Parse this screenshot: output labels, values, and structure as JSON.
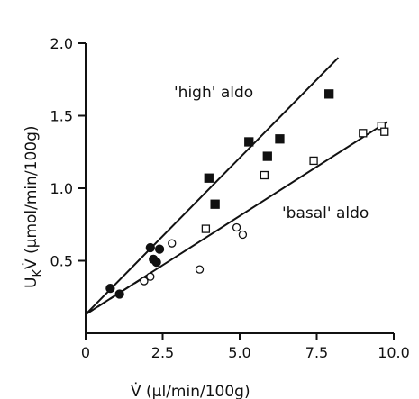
{
  "chart_data": {
    "type": "scatter",
    "xlabel": "V̇ (µl/min/100g)",
    "ylabel_main": "U",
    "ylabel_sub": "K",
    "ylabel_rest": "V̇ (µmol/min/100g)",
    "xlim": [
      0,
      10.0
    ],
    "ylim": [
      0,
      2.0
    ],
    "x_ticks": [
      0,
      2.5,
      5.0,
      7.5,
      10.0
    ],
    "x_tick_labels": [
      "0",
      "2.5",
      "5.0",
      "7.5",
      "10.0"
    ],
    "y_ticks": [
      0.5,
      1.0,
      1.5,
      2.0
    ],
    "y_tick_labels": [
      "0.5",
      "1.0",
      "1.5",
      "2.0"
    ],
    "grid": false,
    "series": [
      {
        "name": "'high' aldo",
        "marker": "filled",
        "points": [
          {
            "shape": "circle",
            "x": 0.8,
            "y": 0.31
          },
          {
            "shape": "circle",
            "x": 1.1,
            "y": 0.27
          },
          {
            "shape": "circle",
            "x": 2.1,
            "y": 0.59
          },
          {
            "shape": "circle",
            "x": 2.4,
            "y": 0.58
          },
          {
            "shape": "circle",
            "x": 2.2,
            "y": 0.51
          },
          {
            "shape": "circle",
            "x": 2.3,
            "y": 0.49
          },
          {
            "shape": "square",
            "x": 4.0,
            "y": 1.07
          },
          {
            "shape": "square",
            "x": 4.2,
            "y": 0.89
          },
          {
            "shape": "square",
            "x": 5.3,
            "y": 1.32
          },
          {
            "shape": "square",
            "x": 5.9,
            "y": 1.22
          },
          {
            "shape": "square",
            "x": 6.3,
            "y": 1.34
          },
          {
            "shape": "square",
            "x": 7.9,
            "y": 1.65
          }
        ],
        "fit_line": {
          "x": [
            0,
            8.2
          ],
          "y": [
            0.13,
            1.9
          ],
          "style": "solid"
        }
      },
      {
        "name": "'basal' aldo",
        "marker": "open",
        "points": [
          {
            "shape": "circle",
            "x": 1.9,
            "y": 0.36
          },
          {
            "shape": "circle",
            "x": 2.1,
            "y": 0.39
          },
          {
            "shape": "circle",
            "x": 2.8,
            "y": 0.62
          },
          {
            "shape": "circle",
            "x": 3.7,
            "y": 0.44
          },
          {
            "shape": "circle",
            "x": 4.9,
            "y": 0.73
          },
          {
            "shape": "circle",
            "x": 5.1,
            "y": 0.68
          },
          {
            "shape": "square",
            "x": 3.9,
            "y": 0.72
          },
          {
            "shape": "square",
            "x": 5.8,
            "y": 1.09
          },
          {
            "shape": "square",
            "x": 7.4,
            "y": 1.19
          },
          {
            "shape": "square",
            "x": 9.0,
            "y": 1.38
          },
          {
            "shape": "square",
            "x": 9.6,
            "y": 1.43
          },
          {
            "shape": "square",
            "x": 9.7,
            "y": 1.39
          }
        ],
        "fit_line": {
          "x": [
            0,
            9.8
          ],
          "y": [
            0.13,
            1.46
          ],
          "style": "solid"
        },
        "fit_dash": {
          "x": [
            0,
            2.0
          ],
          "y": [
            0.13,
            0.4
          ],
          "style": "dashed"
        }
      }
    ],
    "annotations": [
      {
        "text": "'high' aldo",
        "x": 3.6,
        "y": 1.52
      },
      {
        "text": "'basal' aldo",
        "x": 5.7,
        "y": 0.96
      }
    ]
  }
}
